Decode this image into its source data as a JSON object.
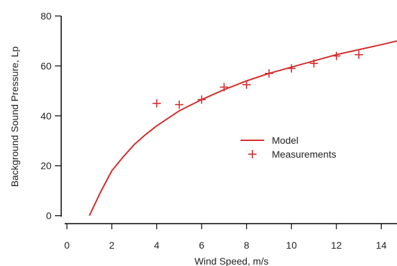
{
  "chart_data": {
    "type": "line",
    "xlabel": "Wind Speed, m/s",
    "ylabel": "Background Sound Pressure, Lp",
    "xlim": [
      -0.1,
      14.7
    ],
    "ylim": [
      -1.5,
      80
    ],
    "xticks": [
      0,
      2,
      4,
      6,
      8,
      10,
      12,
      14
    ],
    "yticks": [
      0,
      20,
      40,
      60,
      80
    ],
    "grid": false,
    "legend": {
      "placement": "center-right"
    },
    "series": [
      {
        "name": "Model",
        "style": "line",
        "color": "#d42a2a",
        "x": [
          1,
          1.5,
          2,
          2.5,
          3,
          3.5,
          4,
          5,
          6,
          7,
          8,
          9,
          10,
          11,
          12,
          13,
          14,
          14.7
        ],
        "y": [
          0,
          9.5,
          18,
          23.5,
          28.5,
          32.5,
          36,
          42,
          46.5,
          50.5,
          54,
          57,
          59.5,
          62,
          64.5,
          66.5,
          68.5,
          70
        ]
      },
      {
        "name": "Measurements",
        "style": "marker-plus",
        "color": "#d42a2a",
        "x": [
          4,
          5,
          6,
          7,
          8,
          9,
          10,
          11,
          12,
          13
        ],
        "y": [
          45,
          44.5,
          46.5,
          51.5,
          52.5,
          57,
          59,
          61,
          64,
          64.5
        ]
      }
    ]
  }
}
